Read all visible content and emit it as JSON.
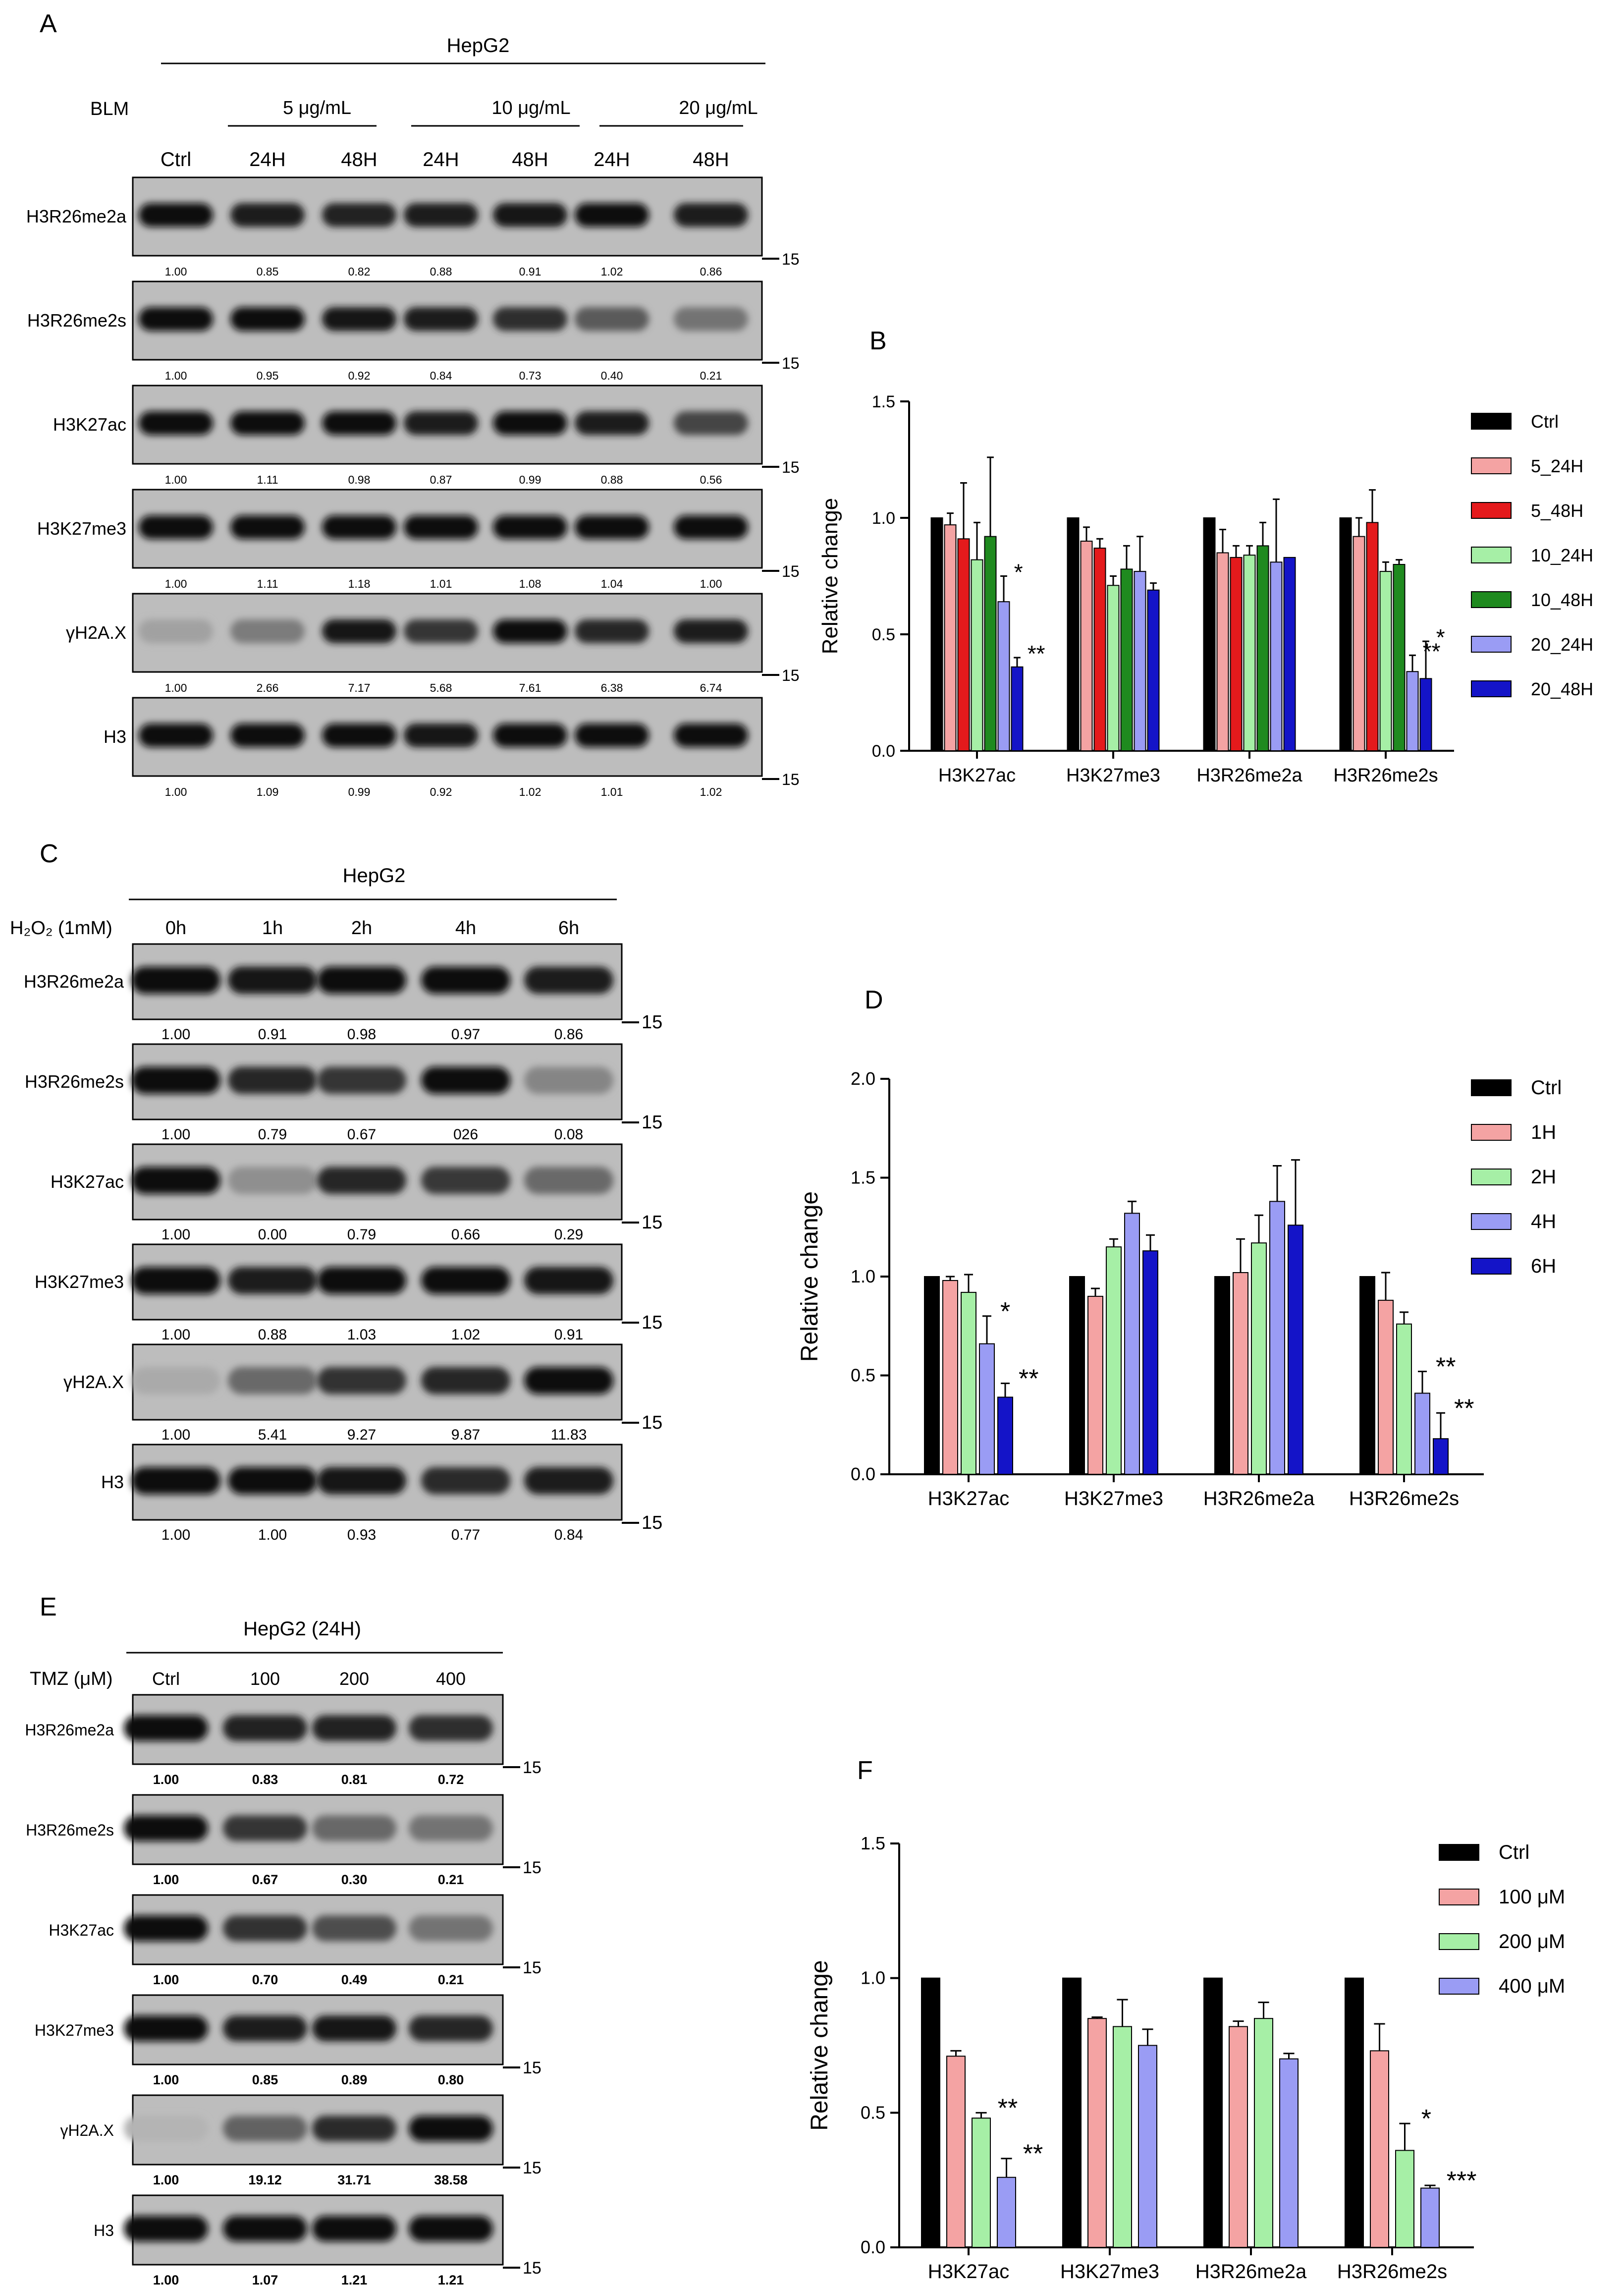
{
  "colors": {
    "ctrl": "#000000",
    "salmon": "#F4A3A3",
    "red": "#E41A1C",
    "lightgreen": "#A6EFA6",
    "green": "#1F8A1F",
    "lavender": "#9A9CF4",
    "navy": "#1414C8"
  },
  "mw_marker": "15",
  "panels": {
    "A": {
      "label": "A",
      "cell_line": "HepG2",
      "treatment": "BLM",
      "dose_groups": [
        "5 μg/mL",
        "10 μg/mL",
        "20 μg/mL"
      ],
      "lanes": [
        "Ctrl",
        "24H",
        "48H",
        "24H",
        "48H",
        "24H",
        "48H"
      ],
      "blots": [
        {
          "name": "H3R26me2a",
          "values": [
            "1.00",
            "0.85",
            "0.82",
            "0.88",
            "0.91",
            "1.02",
            "0.86"
          ]
        },
        {
          "name": "H3R26me2s",
          "values": [
            "1.00",
            "0.95",
            "0.92",
            "0.84",
            "0.73",
            "0.40",
            "0.21"
          ]
        },
        {
          "name": "H3K27ac",
          "values": [
            "1.00",
            "1.11",
            "0.98",
            "0.87",
            "0.99",
            "0.88",
            "0.56"
          ]
        },
        {
          "name": "H3K27me3",
          "values": [
            "1.00",
            "1.11",
            "1.18",
            "1.01",
            "1.08",
            "1.04",
            "1.00"
          ]
        },
        {
          "name": "γH2A.X",
          "values": [
            "1.00",
            "2.66",
            "7.17",
            "5.68",
            "7.61",
            "6.38",
            "6.74"
          ]
        },
        {
          "name": "H3",
          "values": [
            "1.00",
            "1.09",
            "0.99",
            "0.92",
            "1.02",
            "1.01",
            "1.02"
          ]
        }
      ]
    },
    "C": {
      "label": "C",
      "cell_line": "HepG2",
      "treatment": "H₂O₂ (1mM)",
      "lanes": [
        "0h",
        "1h",
        "2h",
        "4h",
        "6h"
      ],
      "blots": [
        {
          "name": "H3R26me2a",
          "values": [
            "1.00",
            "0.91",
            "0.98",
            "0.97",
            "0.86"
          ]
        },
        {
          "name": "H3R26me2s",
          "values": [
            "1.00",
            "0.79",
            "0.67",
            "026",
            "0.08"
          ]
        },
        {
          "name": "H3K27ac",
          "values": [
            "1.00",
            "0.00",
            "0.79",
            "0.66",
            "0.29"
          ]
        },
        {
          "name": "H3K27me3",
          "values": [
            "1.00",
            "0.88",
            "1.03",
            "1.02",
            "0.91"
          ]
        },
        {
          "name": "γH2A.X",
          "values": [
            "1.00",
            "5.41",
            "9.27",
            "9.87",
            "11.83"
          ]
        },
        {
          "name": "H3",
          "values": [
            "1.00",
            "1.00",
            "0.93",
            "0.77",
            "0.84"
          ]
        }
      ]
    },
    "E": {
      "label": "E",
      "cell_line": "HepG2 (24H)",
      "treatment": "TMZ (μM)",
      "lanes": [
        "Ctrl",
        "100",
        "200",
        "400"
      ],
      "blots": [
        {
          "name": "H3R26me2a",
          "values": [
            "1.00",
            "0.83",
            "0.81",
            "0.72"
          ]
        },
        {
          "name": "H3R26me2s",
          "values": [
            "1.00",
            "0.67",
            "0.30",
            "0.21"
          ]
        },
        {
          "name": "H3K27ac",
          "values": [
            "1.00",
            "0.70",
            "0.49",
            "0.21"
          ]
        },
        {
          "name": "H3K27me3",
          "values": [
            "1.00",
            "0.85",
            "0.89",
            "0.80"
          ]
        },
        {
          "name": "γH2A.X",
          "values": [
            "1.00",
            "19.12",
            "31.71",
            "38.58"
          ]
        },
        {
          "name": "H3",
          "values": [
            "1.00",
            "1.07",
            "1.21",
            "1.21"
          ]
        }
      ]
    }
  },
  "chart_data": [
    {
      "panel": "B",
      "type": "bar",
      "ylabel": "Relative change",
      "ylim": [
        0,
        1.5
      ],
      "yticks": [
        "0.0",
        "0.5",
        "1.0",
        "1.5"
      ],
      "categories": [
        "H3K27ac",
        "H3K27me3",
        "H3R26me2a",
        "H3R26me2s"
      ],
      "series": [
        {
          "name": "Ctrl",
          "color": "#000000",
          "values": [
            1.0,
            1.0,
            1.0,
            1.0
          ],
          "errors": [
            0,
            0,
            0,
            0
          ]
        },
        {
          "name": "5_24H",
          "color": "#F4A3A3",
          "values": [
            0.97,
            0.9,
            0.85,
            0.92
          ],
          "errors": [
            0.05,
            0.06,
            0.1,
            0.08
          ]
        },
        {
          "name": "5_48H",
          "color": "#E41A1C",
          "values": [
            0.91,
            0.87,
            0.83,
            0.98
          ],
          "errors": [
            0.24,
            0.04,
            0.05,
            0.14
          ]
        },
        {
          "name": "10_24H",
          "color": "#A6EFA6",
          "values": [
            0.82,
            0.71,
            0.84,
            0.77
          ],
          "errors": [
            0.16,
            0.04,
            0.04,
            0.04
          ]
        },
        {
          "name": "10_48H",
          "color": "#1F8A1F",
          "values": [
            0.92,
            0.78,
            0.88,
            0.8
          ],
          "errors": [
            0.34,
            0.1,
            0.1,
            0.02
          ]
        },
        {
          "name": "20_24H",
          "color": "#9A9CF4",
          "values": [
            0.64,
            0.77,
            0.81,
            0.34
          ],
          "errors": [
            0.11,
            0.15,
            0.27,
            0.07
          ]
        },
        {
          "name": "20_48H",
          "color": "#1414C8",
          "values": [
            0.36,
            0.69,
            0.83,
            0.31
          ],
          "errors": [
            0.04,
            0.03,
            0.0,
            0.16
          ]
        }
      ],
      "annotations": [
        {
          "category": 0,
          "series": 5,
          "text": "*"
        },
        {
          "category": 0,
          "series": 6,
          "text": "**"
        },
        {
          "category": 3,
          "series": 5,
          "text": "**"
        },
        {
          "category": 3,
          "series": 6,
          "text": "*"
        }
      ]
    },
    {
      "panel": "D",
      "type": "bar",
      "ylabel": "Relative change",
      "ylim": [
        0,
        2.0
      ],
      "yticks": [
        "0.0",
        "0.5",
        "1.0",
        "1.5",
        "2.0"
      ],
      "categories": [
        "H3K27ac",
        "H3K27me3",
        "H3R26me2a",
        "H3R26me2s"
      ],
      "series": [
        {
          "name": "Ctrl",
          "color": "#000000",
          "values": [
            1.0,
            1.0,
            1.0,
            1.0
          ],
          "errors": [
            0,
            0,
            0,
            0
          ]
        },
        {
          "name": "1H",
          "color": "#F4A3A3",
          "values": [
            0.98,
            0.9,
            1.02,
            0.88
          ],
          "errors": [
            0.02,
            0.04,
            0.17,
            0.14
          ]
        },
        {
          "name": "2H",
          "color": "#A6EFA6",
          "values": [
            0.92,
            1.15,
            1.17,
            0.76
          ],
          "errors": [
            0.09,
            0.04,
            0.14,
            0.06
          ]
        },
        {
          "name": "4H",
          "color": "#9A9CF4",
          "values": [
            0.66,
            1.32,
            1.38,
            0.41
          ],
          "errors": [
            0.14,
            0.06,
            0.18,
            0.11
          ]
        },
        {
          "name": "6H",
          "color": "#1414C8",
          "values": [
            0.39,
            1.13,
            1.26,
            0.18
          ],
          "errors": [
            0.07,
            0.08,
            0.33,
            0.13
          ]
        }
      ],
      "annotations": [
        {
          "category": 0,
          "series": 3,
          "text": "*"
        },
        {
          "category": 0,
          "series": 4,
          "text": "**"
        },
        {
          "category": 3,
          "series": 3,
          "text": "**"
        },
        {
          "category": 3,
          "series": 4,
          "text": "**"
        }
      ]
    },
    {
      "panel": "F",
      "type": "bar",
      "ylabel": "Relative change",
      "ylim": [
        0,
        1.5
      ],
      "yticks": [
        "0.0",
        "0.5",
        "1.0",
        "1.5"
      ],
      "categories": [
        "H3K27ac",
        "H3K27me3",
        "H3R26me2a",
        "H3R26me2s"
      ],
      "series": [
        {
          "name": "Ctrl",
          "color": "#000000",
          "values": [
            1.0,
            1.0,
            1.0,
            1.0
          ],
          "errors": [
            0,
            0,
            0,
            0
          ]
        },
        {
          "name": "100 μM",
          "color": "#F4A3A3",
          "values": [
            0.71,
            0.85,
            0.82,
            0.73
          ],
          "errors": [
            0.02,
            0.005,
            0.02,
            0.1
          ]
        },
        {
          "name": "200 μM",
          "color": "#A6EFA6",
          "values": [
            0.48,
            0.82,
            0.85,
            0.36
          ],
          "errors": [
            0.02,
            0.1,
            0.06,
            0.1
          ]
        },
        {
          "name": "400 μM",
          "color": "#9A9CF4",
          "values": [
            0.26,
            0.75,
            0.7,
            0.22
          ],
          "errors": [
            0.07,
            0.06,
            0.02,
            0.01
          ]
        }
      ],
      "annotations": [
        {
          "category": 0,
          "series": 2,
          "text": "**"
        },
        {
          "category": 0,
          "series": 3,
          "text": "**"
        },
        {
          "category": 3,
          "series": 2,
          "text": "*"
        },
        {
          "category": 3,
          "series": 3,
          "text": "***"
        }
      ]
    }
  ],
  "chart_labels": {
    "B": "B",
    "D": "D",
    "F": "F"
  }
}
